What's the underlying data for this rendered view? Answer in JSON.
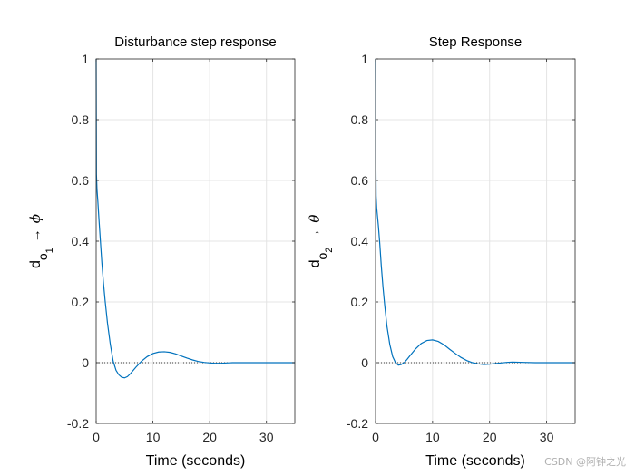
{
  "chart_data": [
    {
      "type": "line",
      "title": "Disturbance step response",
      "xlabel": "Time (seconds)",
      "ylabel_main": "d",
      "ylabel_sub": "o",
      "ylabel_subsub": "1",
      "ylabel_arrow": "→",
      "ylabel_symbol": "ϕ",
      "xlim": [
        0,
        35
      ],
      "ylim": [
        -0.2,
        1
      ],
      "xticks": [
        "0",
        "10",
        "20",
        "30"
      ],
      "yticks": [
        "-0.2",
        "0",
        "0.2",
        "0.4",
        "0.6",
        "0.8",
        "1"
      ],
      "grid": true,
      "series_color": "#0072BD",
      "series": [
        {
          "name": "response",
          "x": [
            0,
            0.05,
            0.15,
            0.3,
            0.5,
            0.75,
            1,
            1.3,
            1.6,
            2,
            2.5,
            3,
            3.5,
            4,
            4.5,
            5,
            5.5,
            6,
            7,
            8,
            9,
            10,
            11,
            12,
            13,
            14,
            15,
            16,
            17,
            18,
            19,
            20,
            21,
            22,
            23,
            24,
            26,
            30,
            35
          ],
          "y": [
            1.0,
            0.62,
            0.57,
            0.53,
            0.47,
            0.4,
            0.33,
            0.26,
            0.2,
            0.13,
            0.06,
            0.005,
            -0.025,
            -0.04,
            -0.048,
            -0.05,
            -0.046,
            -0.037,
            -0.015,
            0.005,
            0.02,
            0.03,
            0.035,
            0.036,
            0.034,
            0.029,
            0.022,
            0.015,
            0.009,
            0.004,
            0.001,
            -0.001,
            -0.002,
            -0.002,
            -0.001,
            0.0,
            0.0,
            0.0,
            0.0
          ]
        }
      ],
      "reference_y": 0
    },
    {
      "type": "line",
      "title": "Step Response",
      "xlabel": "Time (seconds)",
      "ylabel_main": "d",
      "ylabel_sub": "o",
      "ylabel_subsub": "2",
      "ylabel_arrow": "→",
      "ylabel_symbol": "θ",
      "xlim": [
        0,
        35
      ],
      "ylim": [
        -0.2,
        1
      ],
      "xticks": [
        "0",
        "10",
        "20",
        "30"
      ],
      "yticks": [
        "-0.2",
        "0",
        "0.2",
        "0.4",
        "0.6",
        "0.8",
        "1"
      ],
      "grid": true,
      "series_color": "#0072BD",
      "series": [
        {
          "name": "response",
          "x": [
            0,
            0.05,
            0.1,
            0.2,
            0.35,
            0.5,
            0.75,
            1,
            1.3,
            1.6,
            2,
            2.5,
            3,
            3.5,
            4,
            4.5,
            5,
            5.5,
            6,
            7,
            8,
            9,
            10,
            11,
            12,
            13,
            14,
            15,
            16,
            17,
            18,
            19,
            20,
            21,
            22,
            23,
            24,
            26,
            28,
            31,
            35
          ],
          "y": [
            1.0,
            0.67,
            0.55,
            0.51,
            0.48,
            0.45,
            0.39,
            0.32,
            0.25,
            0.19,
            0.12,
            0.06,
            0.02,
            0.0,
            -0.008,
            -0.006,
            0.0,
            0.01,
            0.022,
            0.045,
            0.063,
            0.073,
            0.075,
            0.07,
            0.059,
            0.044,
            0.03,
            0.017,
            0.007,
            0.0,
            -0.004,
            -0.006,
            -0.005,
            -0.003,
            -0.001,
            0.001,
            0.002,
            0.001,
            0.0,
            0.0,
            0.0
          ]
        }
      ],
      "reference_y": 0
    }
  ],
  "watermark": "CSDN @阿钟之光"
}
